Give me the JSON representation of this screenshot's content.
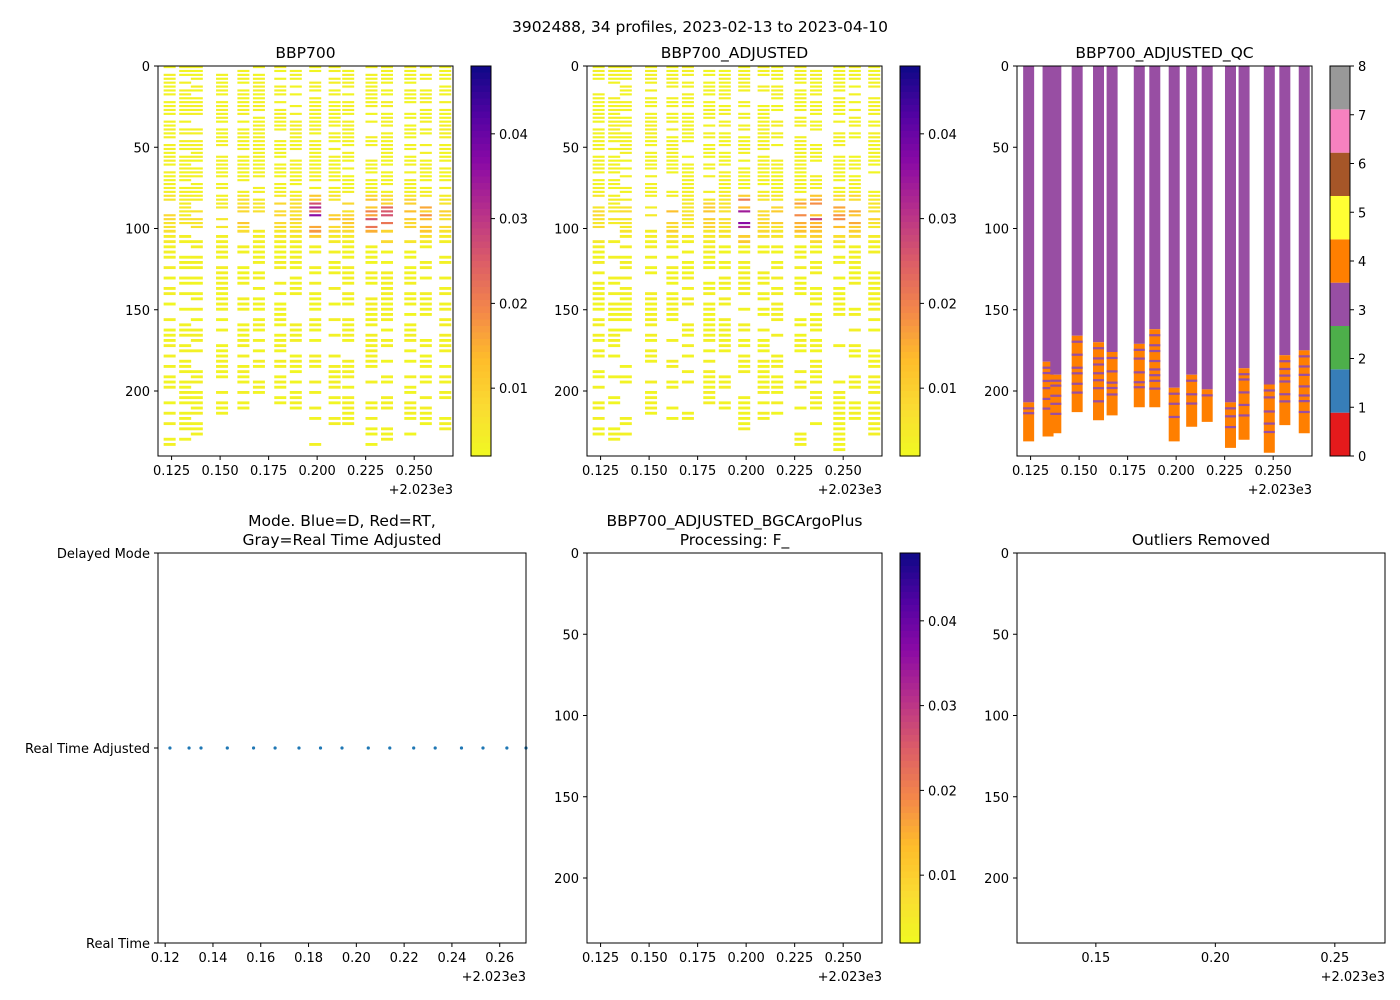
{
  "chart_data": [
    {
      "type": "heatmap",
      "title": "BBP700",
      "y_axis": {
        "range": [
          0,
          240
        ],
        "inverted": true,
        "ticks": [
          "0",
          "50",
          "100",
          "150",
          "200"
        ]
      },
      "x_axis": {
        "range": [
          2023.118,
          2023.27
        ],
        "ticks": [
          "0.125",
          "0.150",
          "0.175",
          "0.200",
          "0.225",
          "0.250"
        ],
        "offset_label": "+2.023e3"
      },
      "colorbar": {
        "colormap": "plasma_r",
        "range": [
          0.002,
          0.048
        ],
        "ticks": [
          "0.01",
          "0.02",
          "0.03",
          "0.04"
        ]
      }
    },
    {
      "type": "heatmap",
      "title": "BBP700_ADJUSTED",
      "y_axis": {
        "range": [
          0,
          240
        ],
        "inverted": true,
        "ticks": [
          "0",
          "50",
          "100",
          "150",
          "200"
        ]
      },
      "x_axis": {
        "range": [
          2023.118,
          2023.27
        ],
        "ticks": [
          "0.125",
          "0.150",
          "0.175",
          "0.200",
          "0.225",
          "0.250"
        ],
        "offset_label": "+2.023e3"
      },
      "colorbar": {
        "colormap": "plasma_r",
        "range": [
          0.002,
          0.048
        ],
        "ticks": [
          "0.01",
          "0.02",
          "0.03",
          "0.04"
        ]
      }
    },
    {
      "type": "heatmap",
      "title": "BBP700_ADJUSTED_QC",
      "y_axis": {
        "range": [
          0,
          240
        ],
        "inverted": true,
        "ticks": [
          "0",
          "50",
          "100",
          "150",
          "200"
        ]
      },
      "x_axis": {
        "range": [
          2023.118,
          2023.27
        ],
        "ticks": [
          "0.125",
          "0.150",
          "0.175",
          "0.200",
          "0.225",
          "0.250"
        ],
        "offset_label": "+2.023e3"
      },
      "colorbar": {
        "type": "categorical",
        "range": [
          0,
          8
        ],
        "ticks": [
          "0",
          "1",
          "2",
          "3",
          "4",
          "5",
          "6",
          "7",
          "8"
        ],
        "colors": [
          "#e41a1c",
          "#377eb8",
          "#4daf4a",
          "#984ea3",
          "#ff7f00",
          "#ffff33",
          "#a65628",
          "#f781bf",
          "#999999"
        ]
      }
    },
    {
      "type": "scatter",
      "title": "Mode. Blue=D, Red=RT,\nGray=Real Time Adjusted",
      "y_categories": [
        "Real Time",
        "Real Time Adjusted",
        "Delayed Mode"
      ],
      "x_axis": {
        "range": [
          2023.117,
          2023.271
        ],
        "ticks": [
          "0.12",
          "0.14",
          "0.16",
          "0.18",
          "0.20",
          "0.22",
          "0.24",
          "0.26"
        ],
        "offset_label": "+2.023e3"
      },
      "series": [
        {
          "name": "mode",
          "color": "#1f77b4",
          "y": "Real Time Adjusted",
          "x": [
            2023.122,
            2023.13,
            2023.135,
            2023.146,
            2023.157,
            2023.166,
            2023.176,
            2023.185,
            2023.194,
            2023.205,
            2023.214,
            2023.224,
            2023.233,
            2023.244,
            2023.253,
            2023.263,
            2023.271
          ]
        }
      ]
    },
    {
      "type": "heatmap",
      "title": "BBP700_ADJUSTED_BGCArgoPlus\nProcessing: F_",
      "y_axis": {
        "range": [
          0,
          240
        ],
        "inverted": true,
        "ticks": [
          "0",
          "50",
          "100",
          "150",
          "200"
        ]
      },
      "x_axis": {
        "range": [
          2023.118,
          2023.27
        ],
        "ticks": [
          "0.125",
          "0.150",
          "0.175",
          "0.200",
          "0.225",
          "0.250"
        ],
        "offset_label": "+2.023e3"
      },
      "colorbar": {
        "colormap": "plasma_r",
        "range": [
          0.002,
          0.048
        ],
        "ticks": [
          "0.01",
          "0.02",
          "0.03",
          "0.04"
        ]
      }
    },
    {
      "type": "heatmap",
      "title": "Outliers Removed",
      "y_axis": {
        "range": [
          0,
          240
        ],
        "inverted": true,
        "ticks": [
          "0",
          "50",
          "100",
          "150",
          "200"
        ]
      },
      "x_axis": {
        "range": [
          2023.117,
          2023.271
        ],
        "ticks": [
          "0.15",
          "0.20",
          "0.25"
        ],
        "offset_label": "+2.023e3"
      }
    }
  ],
  "figure": {
    "suptitle": "3902488, 34 profiles, 2023-02-13 to 2023-04-10",
    "profiles": [
      {
        "x": 2023.124,
        "depth": 232,
        "peak": 0.012
      },
      {
        "x": 2023.132,
        "depth": 230,
        "peak": 0.006
      },
      {
        "x": 2023.138,
        "depth": 226,
        "peak": 0.008
      },
      {
        "x": 2023.151,
        "depth": 215,
        "peak": 0.006
      },
      {
        "x": 2023.162,
        "depth": 218,
        "peak": 0.014
      },
      {
        "x": 2023.17,
        "depth": 216,
        "peak": 0.008
      },
      {
        "x": 2023.181,
        "depth": 210,
        "peak": 0.012
      },
      {
        "x": 2023.189,
        "depth": 211,
        "peak": 0.01
      },
      {
        "x": 2023.199,
        "depth": 232,
        "peak": 0.045
      },
      {
        "x": 2023.209,
        "depth": 222,
        "peak": 0.013
      },
      {
        "x": 2023.216,
        "depth": 220,
        "peak": 0.012
      },
      {
        "x": 2023.228,
        "depth": 235,
        "peak": 0.028
      },
      {
        "x": 2023.236,
        "depth": 230,
        "peak": 0.03
      },
      {
        "x": 2023.248,
        "depth": 238,
        "peak": 0.02
      },
      {
        "x": 2023.256,
        "depth": 222,
        "peak": 0.02
      },
      {
        "x": 2023.266,
        "depth": 226,
        "peak": 0.01
      }
    ],
    "qc_profiles": [
      {
        "x": 2023.124,
        "depth": 231,
        "flag4_start": 207
      },
      {
        "x": 2023.134,
        "depth": 228,
        "flag4_start": 182
      },
      {
        "x": 2023.138,
        "depth": 226,
        "flag4_start": 190
      },
      {
        "x": 2023.149,
        "depth": 213,
        "flag4_start": 166
      },
      {
        "x": 2023.16,
        "depth": 218,
        "flag4_start": 170
      },
      {
        "x": 2023.167,
        "depth": 215,
        "flag4_start": 176
      },
      {
        "x": 2023.181,
        "depth": 210,
        "flag4_start": 171
      },
      {
        "x": 2023.189,
        "depth": 210,
        "flag4_start": 162
      },
      {
        "x": 2023.199,
        "depth": 231,
        "flag4_start": 198
      },
      {
        "x": 2023.208,
        "depth": 222,
        "flag4_start": 190
      },
      {
        "x": 2023.216,
        "depth": 219,
        "flag4_start": 199
      },
      {
        "x": 2023.228,
        "depth": 235,
        "flag4_start": 207
      },
      {
        "x": 2023.235,
        "depth": 230,
        "flag4_start": 186
      },
      {
        "x": 2023.248,
        "depth": 238,
        "flag4_start": 196
      },
      {
        "x": 2023.256,
        "depth": 221,
        "flag4_start": 178
      },
      {
        "x": 2023.266,
        "depth": 226,
        "flag4_start": 175
      }
    ]
  }
}
